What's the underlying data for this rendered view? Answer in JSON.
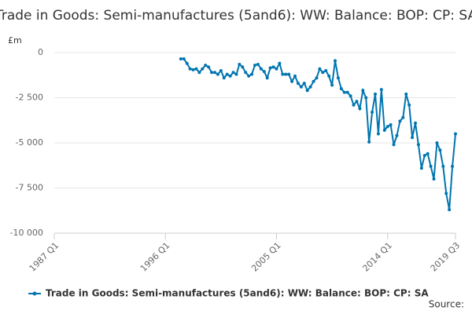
{
  "chart_data": {
    "type": "line",
    "title": "Trade in Goods: Semi-manufactures (5and6): WW: Balance: BOP: CP: SA",
    "y_unit": "£m",
    "source": "Source:",
    "xlim": [
      1987,
      2019.5
    ],
    "xticks": [
      {
        "value": 1987,
        "label": "1987 Q1"
      },
      {
        "value": 1996,
        "label": "1996 Q1"
      },
      {
        "value": 2005,
        "label": "2005 Q1"
      },
      {
        "value": 2014,
        "label": "2014 Q1"
      },
      {
        "value": 2019.5,
        "label": "2019 Q3"
      }
    ],
    "ylim": [
      -10000,
      0
    ],
    "yticks": [
      0,
      {
        "value": -2500,
        "label": "-2 500"
      },
      {
        "value": -5000,
        "label": "-5 000"
      },
      {
        "value": -7500,
        "label": "-7 500"
      },
      {
        "value": -10000,
        "label": "-10 000"
      }
    ],
    "grid": true,
    "legend": "bottom",
    "series": [
      {
        "name": "Trade in Goods: Semi-manufactures (5and6): WW: Balance: BOP: CP: SA",
        "color": "#0075b0",
        "x": [
          1997.25,
          1997.5,
          1997.75,
          1998,
          1998.25,
          1998.5,
          1998.75,
          1999,
          1999.25,
          1999.5,
          1999.75,
          2000,
          2000.25,
          2000.5,
          2000.75,
          2001,
          2001.25,
          2001.5,
          2001.75,
          2002,
          2002.25,
          2002.5,
          2002.75,
          2003,
          2003.25,
          2003.5,
          2003.75,
          2004,
          2004.25,
          2004.5,
          2004.75,
          2005,
          2005.25,
          2005.5,
          2005.75,
          2006,
          2006.25,
          2006.5,
          2006.75,
          2007,
          2007.25,
          2007.5,
          2007.75,
          2008,
          2008.25,
          2008.5,
          2008.75,
          2009,
          2009.25,
          2009.5,
          2009.75,
          2010,
          2010.25,
          2010.5,
          2010.75,
          2011,
          2011.25,
          2011.5,
          2011.75,
          2012,
          2012.25,
          2012.5,
          2012.75,
          2013,
          2013.25,
          2013.5,
          2013.75,
          2014,
          2014.25,
          2014.5,
          2014.75,
          2015,
          2015.25,
          2015.5,
          2015.75,
          2016,
          2016.25,
          2016.5,
          2016.75,
          2017,
          2017.25,
          2017.5,
          2017.75,
          2018,
          2018.25,
          2018.5,
          2018.75,
          2019,
          2019.25,
          2019.5
        ],
        "values": [
          -350,
          -350,
          -600,
          -900,
          -950,
          -900,
          -1100,
          -900,
          -700,
          -800,
          -1100,
          -1100,
          -1200,
          -1000,
          -1400,
          -1200,
          -1300,
          -1100,
          -1200,
          -650,
          -800,
          -1100,
          -1300,
          -1200,
          -700,
          -650,
          -900,
          -1050,
          -1400,
          -850,
          -800,
          -900,
          -600,
          -1200,
          -1200,
          -1200,
          -1600,
          -1300,
          -1700,
          -1900,
          -1700,
          -2100,
          -1900,
          -1600,
          -1400,
          -900,
          -1100,
          -1000,
          -1300,
          -1800,
          -450,
          -1400,
          -2000,
          -2200,
          -2200,
          -2400,
          -2900,
          -2700,
          -3100,
          -2100,
          -2500,
          -4950,
          -3300,
          -2300,
          -4500,
          -2050,
          -4300,
          -4100,
          -4000,
          -5100,
          -4600,
          -3800,
          -3600,
          -2300,
          -2900,
          -4700,
          -3900,
          -5100,
          -6400,
          -5700,
          -5600,
          -6300,
          -7000,
          -5000,
          -5400,
          -6300,
          -7800,
          -8700,
          -6300,
          -4500
        ]
      }
    ]
  }
}
